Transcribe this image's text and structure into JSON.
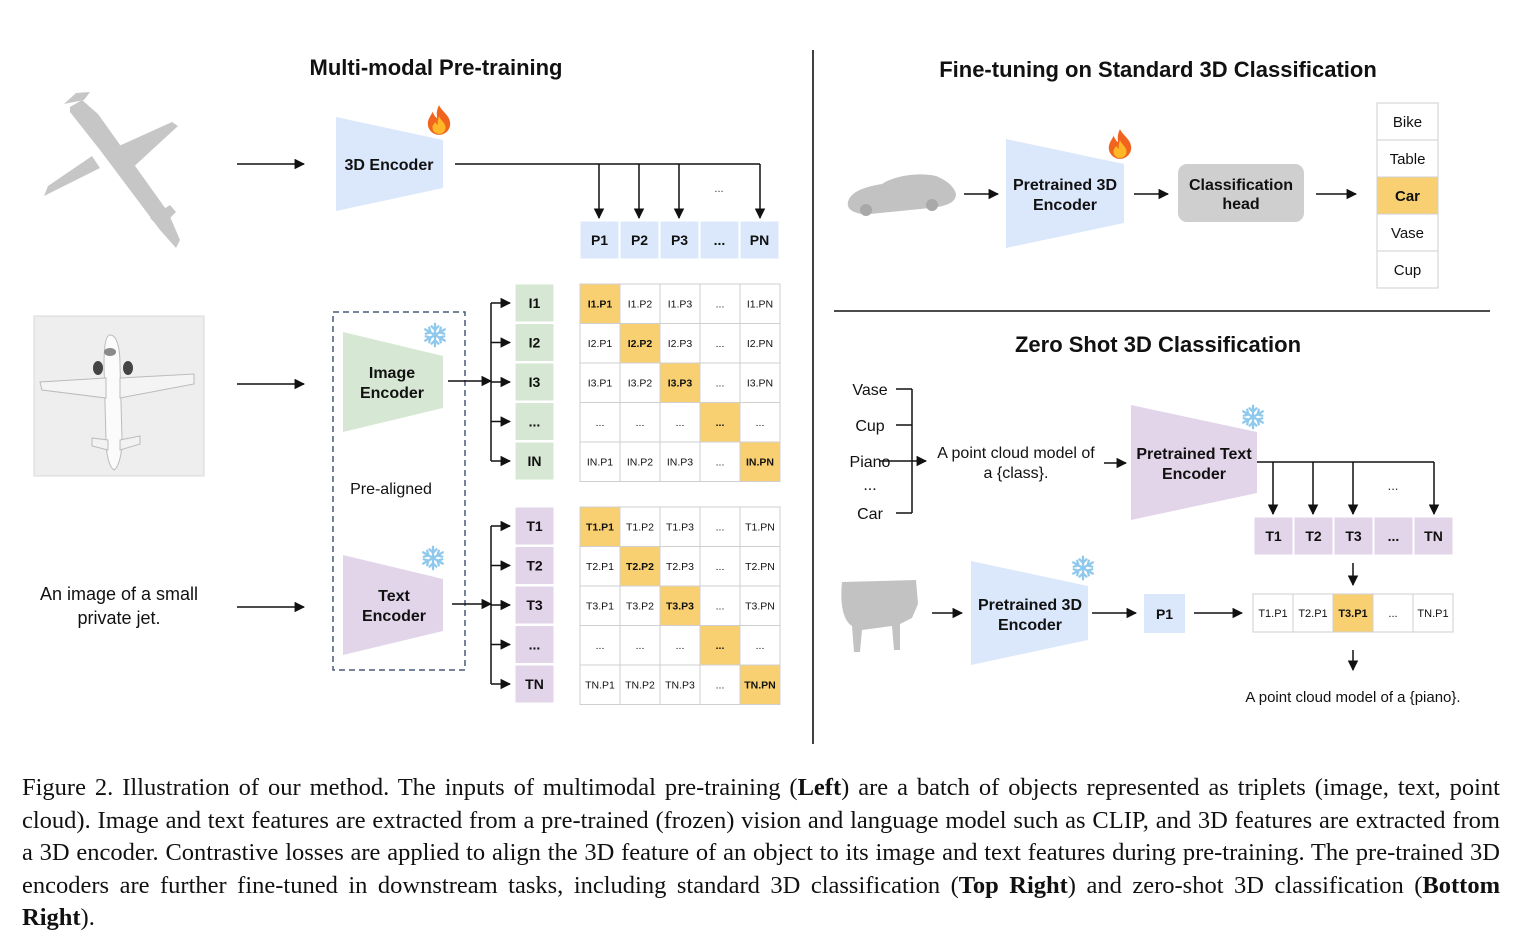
{
  "left": {
    "title": "Multi-modal Pre-training",
    "encoder_3d": "3D Encoder",
    "image_encoder": [
      "Image",
      "Encoder"
    ],
    "text_encoder": [
      "Text",
      "Encoder"
    ],
    "pre_aligned": "Pre-aligned",
    "text_input": [
      "An image of a small",
      "private jet."
    ],
    "point_tokens": [
      "P1",
      "P2",
      "P3",
      "...",
      "PN"
    ],
    "dots_label": "...",
    "image_tokens": [
      "I1",
      "I2",
      "I3",
      "...",
      "IN"
    ],
    "text_tokens": [
      "T1",
      "T2",
      "T3",
      "...",
      "TN"
    ],
    "image_matrix": [
      [
        "I1.P1",
        "I1.P2",
        "I1.P3",
        "...",
        "I1.PN"
      ],
      [
        "I2.P1",
        "I2.P2",
        "I2.P3",
        "...",
        "I2.PN"
      ],
      [
        "I3.P1",
        "I3.P2",
        "I3.P3",
        "...",
        "I3.PN"
      ],
      [
        "...",
        "...",
        "...",
        "...",
        "..."
      ],
      [
        "IN.P1",
        "IN.P2",
        "IN.P3",
        "...",
        "IN.PN"
      ]
    ],
    "text_matrix": [
      [
        "T1.P1",
        "T1.P2",
        "T1.P3",
        "...",
        "T1.PN"
      ],
      [
        "T2.P1",
        "T2.P2",
        "T2.P3",
        "...",
        "T2.PN"
      ],
      [
        "T3.P1",
        "T3.P2",
        "T3.P3",
        "...",
        "T3.PN"
      ],
      [
        "...",
        "...",
        "...",
        "...",
        "..."
      ],
      [
        "TN.P1",
        "TN.P2",
        "TN.P3",
        "...",
        "TN.PN"
      ]
    ]
  },
  "top_right": {
    "title": "Fine-tuning on Standard 3D Classification",
    "encoder": [
      "Pretrained 3D",
      "Encoder"
    ],
    "head": [
      "Classification",
      "head"
    ],
    "classes": [
      "Bike",
      "Table",
      "Car",
      "Vase",
      "Cup"
    ],
    "selected_class": 2
  },
  "bottom_right": {
    "title": "Zero Shot 3D Classification",
    "class_list": [
      "Vase",
      "Cup",
      "Piano",
      "...",
      "Car"
    ],
    "prompt": [
      "A point cloud model of",
      "a {class}."
    ],
    "text_encoder": [
      "Pretrained Text",
      "Encoder"
    ],
    "text_tokens": [
      "T1",
      "T2",
      "T3",
      "...",
      "TN"
    ],
    "dots_label": "...",
    "encoder_3d": [
      "Pretrained 3D",
      "Encoder"
    ],
    "point_token": "P1",
    "scores": [
      "T1.P1",
      "T2.P1",
      "T3.P1",
      "...",
      "TN.P1"
    ],
    "selected_score": 2,
    "result": "A point cloud model of a {piano}."
  },
  "caption": {
    "segments": [
      {
        "text": "Figure 2. Illustration of our method. The inputs of multimodal pre-training (",
        "bold": false
      },
      {
        "text": "Left",
        "bold": true
      },
      {
        "text": ") are a batch of objects represented as triplets (image, text, point cloud). Image and text features are extracted from a pre-trained (frozen) vision and language model such as CLIP, and 3D features are extracted from a 3D encoder. Contrastive losses are applied to align the 3D feature of an object to its image and text features during pre-training. The pre-trained 3D encoders are further fine-tuned in downstream tasks, including standard 3D classification (",
        "bold": false
      },
      {
        "text": "Top Right",
        "bold": true
      },
      {
        "text": ") and zero-shot 3D classification (",
        "bold": false
      },
      {
        "text": "Bottom Right",
        "bold": true
      },
      {
        "text": ").",
        "bold": false
      }
    ]
  },
  "colors": {
    "blue": "#dbe8fb",
    "green": "#d6e8d3",
    "purple": "#e2d5ea",
    "gold": "#f8d071",
    "gray_box": "#cfcfcf",
    "grid_border": "#cfcfcf"
  }
}
